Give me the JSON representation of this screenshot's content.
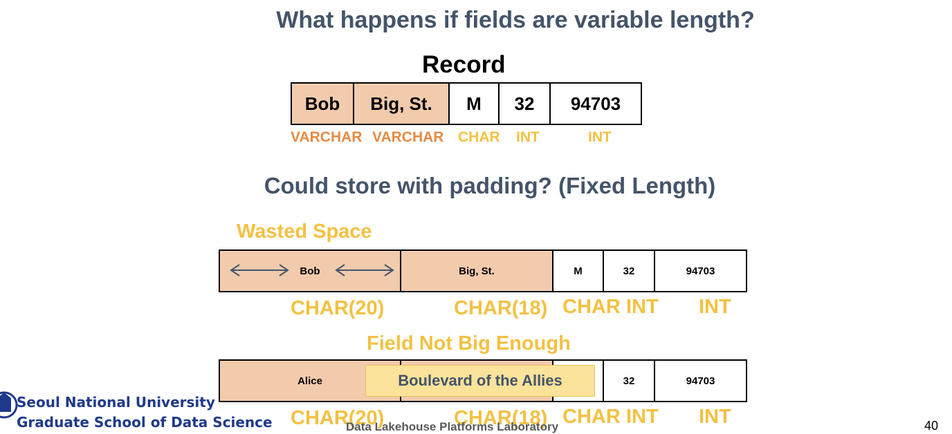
{
  "title": "What happens if fields are variable length?",
  "record": {
    "label": "Record",
    "cells": [
      "Bob",
      "Big, St.",
      "M",
      "32",
      "94703"
    ],
    "types": {
      "varchar1": "VARCHAR",
      "varchar2": "VARCHAR",
      "char": "CHAR",
      "int1": "INT",
      "int2": "INT"
    }
  },
  "subtitle": "Could store with padding? (Fixed Length)",
  "wasted_label": "Wasted Space",
  "row1": {
    "cells": [
      "Bob",
      "Big, St.",
      "M",
      "32",
      "94703"
    ],
    "types": [
      "CHAR(20)",
      "CHAR(18)",
      "CHAR",
      "INT",
      "INT"
    ]
  },
  "not_big_label": "Field Not Big Enough",
  "row2": {
    "cells": [
      "Alice",
      "",
      "",
      "32",
      "94703"
    ],
    "overflow_text": "Boulevard of the Allies",
    "types": [
      "CHAR(20)",
      "CHAR(18)",
      "CHAR",
      "INT",
      "INT"
    ]
  },
  "footer": {
    "university": "Seoul National University",
    "school": "Graduate School of Data Science",
    "lab": "Data Lakehouse Platforms Laboratory",
    "page": "40"
  },
  "colors": {
    "heading": "#44546a",
    "peach": "#f2cbad",
    "orange": "#e58a44",
    "yellow": "#f3c143",
    "highlight": "#fbe39a",
    "snu_blue": "#1f3a8a"
  }
}
